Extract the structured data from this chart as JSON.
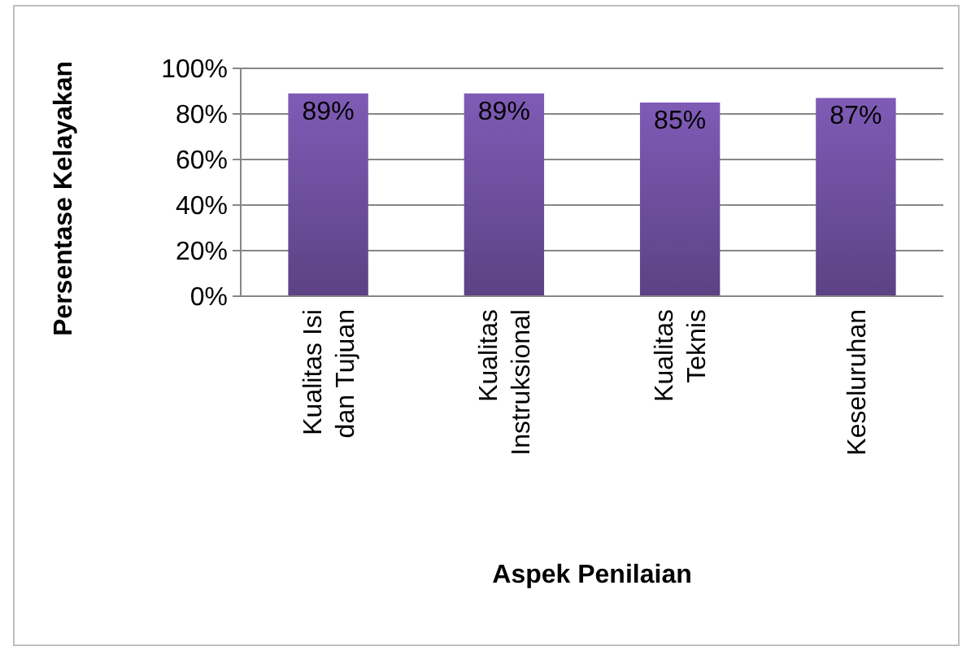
{
  "chart_data": {
    "type": "bar",
    "xlabel": "Aspek Penilaian",
    "ylabel": "Persentase Kelayakan",
    "categories": [
      "Kualitas Isi dan Tujuan",
      "Kualitas Instruksional",
      "Kualitas Teknis",
      "Keseluruhan"
    ],
    "values": [
      89,
      89,
      85,
      87
    ],
    "value_labels": [
      "89%",
      "89%",
      "85%",
      "87%"
    ],
    "color": "#6a4c98",
    "ylim": [
      0,
      100
    ],
    "yticks": [
      {
        "value": 0,
        "label": "0%"
      },
      {
        "value": 20,
        "label": "20%"
      },
      {
        "value": 40,
        "label": "40%"
      },
      {
        "value": 60,
        "label": "60%"
      },
      {
        "value": 80,
        "label": "80%"
      },
      {
        "value": 100,
        "label": "100%"
      }
    ],
    "grid": "y"
  }
}
